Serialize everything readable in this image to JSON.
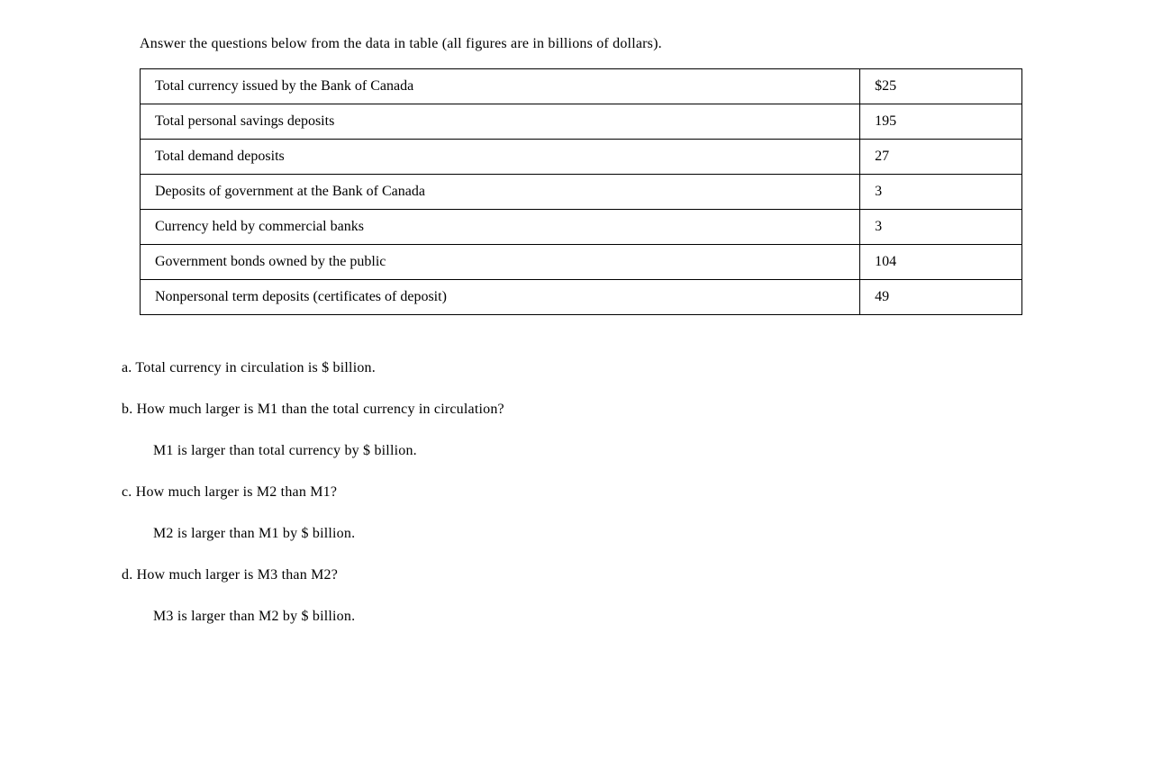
{
  "intro": "Answer the questions below from the data in table (all figures are in billions of dollars).",
  "table": {
    "rows": [
      {
        "label": "Total currency issued by the Bank of Canada",
        "value": "$25"
      },
      {
        "label": "Total personal savings deposits",
        "value": "195"
      },
      {
        "label": "Total demand deposits",
        "value": "27"
      },
      {
        "label": "Deposits of government at the Bank of Canada",
        "value": "3"
      },
      {
        "label": "Currency held by commercial banks",
        "value": "3"
      },
      {
        "label": "Government bonds owned by the public",
        "value": "104"
      },
      {
        "label": "Nonpersonal term deposits (certificates of deposit)",
        "value": "49"
      }
    ],
    "border_color": "#000000",
    "background_color": "#ffffff",
    "font_size": 16,
    "cell_padding": "10px 16px",
    "label_col_width": 800,
    "value_col_width": 180
  },
  "questions": {
    "a": {
      "text": "a. Total currency in circulation is $  billion."
    },
    "b": {
      "question": "b. How much larger is M1 than the total currency in circulation?",
      "answer": "M1 is larger than total currency by $  billion."
    },
    "c": {
      "question": "c. How much larger is M2 than M1?",
      "answer": "M2 is larger than M1 by $  billion."
    },
    "d": {
      "question": "d. How much larger is M3 than M2?",
      "answer": "M3 is larger than M2 by $  billion."
    }
  },
  "style": {
    "font_family": "Georgia, Times New Roman, serif",
    "text_color": "#000000",
    "page_bg": "#ffffff",
    "body_fontsize": 16
  }
}
